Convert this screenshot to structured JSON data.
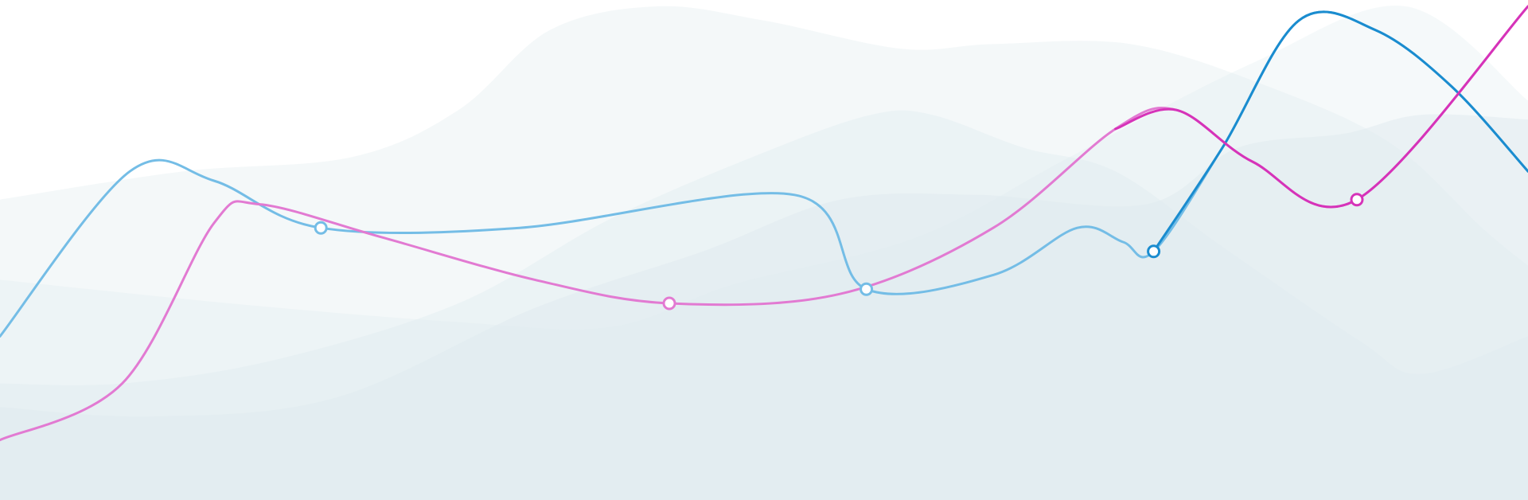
{
  "chart_data": {
    "type": "line",
    "grid": false,
    "legend": "none",
    "x_range": [
      0,
      100
    ],
    "y_range": [
      0,
      100
    ],
    "background_areas": [
      {
        "color": "#dfeaef",
        "opacity": 0.35,
        "points": [
          [
            0,
            41
          ],
          [
            12,
            35
          ],
          [
            23,
            32
          ],
          [
            30,
            22
          ],
          [
            36,
            5
          ],
          [
            43,
            0
          ],
          [
            50,
            3
          ],
          [
            59,
            9
          ],
          [
            65,
            8
          ],
          [
            74,
            8
          ],
          [
            83,
            17
          ],
          [
            91,
            29
          ],
          [
            97,
            47
          ],
          [
            100,
            55
          ]
        ]
      },
      {
        "color": "#dfeaef",
        "opacity": 0.4,
        "points": [
          [
            0,
            80
          ],
          [
            8,
            80
          ],
          [
            18,
            75
          ],
          [
            30,
            63
          ],
          [
            40,
            45
          ],
          [
            50,
            31
          ],
          [
            57,
            23
          ],
          [
            61,
            23
          ],
          [
            67,
            30
          ],
          [
            73,
            35
          ],
          [
            80,
            51
          ],
          [
            89,
            71
          ],
          [
            93,
            78
          ],
          [
            100,
            70
          ]
        ]
      },
      {
        "color": "#dfeaef",
        "opacity": 0.5,
        "points": [
          [
            0,
            85
          ],
          [
            10,
            87
          ],
          [
            22,
            83
          ],
          [
            35,
            64
          ],
          [
            46,
            52
          ],
          [
            55,
            41
          ],
          [
            64,
            40
          ],
          [
            75,
            42
          ],
          [
            81,
            30
          ],
          [
            88,
            27
          ],
          [
            93,
            23
          ],
          [
            100,
            24
          ]
        ]
      },
      {
        "color": "#dfeaef",
        "opacity": 0.3,
        "points": [
          [
            0,
            58
          ],
          [
            15,
            63
          ],
          [
            30,
            67
          ],
          [
            40,
            68
          ],
          [
            48,
            59
          ],
          [
            60,
            49
          ],
          [
            70,
            32
          ],
          [
            82,
            12
          ],
          [
            92,
            0
          ],
          [
            100,
            20
          ]
        ]
      }
    ],
    "series": [
      {
        "color": "#74bde6",
        "x": [
          0,
          8.5,
          14,
          21,
          34,
          52,
          56.7,
          65,
          70.5,
          73.5,
          75.5,
          80,
          85,
          90,
          95,
          100
        ],
        "y": [
          70,
          35,
          37,
          47,
          47,
          40,
          60,
          57,
          47,
          50,
          52,
          30,
          3,
          5,
          17,
          35
        ],
        "markers": [
          {
            "x": 21,
            "y": 47
          },
          {
            "x": 56.7,
            "y": 60
          }
        ]
      },
      {
        "color": "#e27ad2",
        "x": [
          0,
          8,
          14,
          17,
          25,
          35,
          43.8,
          55,
          65,
          73,
          77,
          82,
          88.8,
          100
        ],
        "y": [
          92,
          80,
          46,
          42,
          49,
          58,
          63,
          61,
          47,
          26,
          22,
          33,
          41,
          0
        ],
        "markers": [
          {
            "x": 43.8,
            "y": 63
          }
        ]
      },
      {
        "color": "#1a8ccf",
        "x": [
          75.5,
          80,
          85,
          90,
          95,
          100
        ],
        "y": [
          52,
          30,
          3,
          5,
          17,
          35
        ],
        "markers": [
          {
            "x": 75.5,
            "y": 52
          }
        ]
      },
      {
        "color": "#d633b9",
        "x": [
          73,
          77,
          82,
          88.8,
          100
        ],
        "y": [
          26,
          22,
          33,
          41,
          0
        ],
        "markers": [
          {
            "x": 88.8,
            "y": 41
          }
        ]
      }
    ]
  }
}
